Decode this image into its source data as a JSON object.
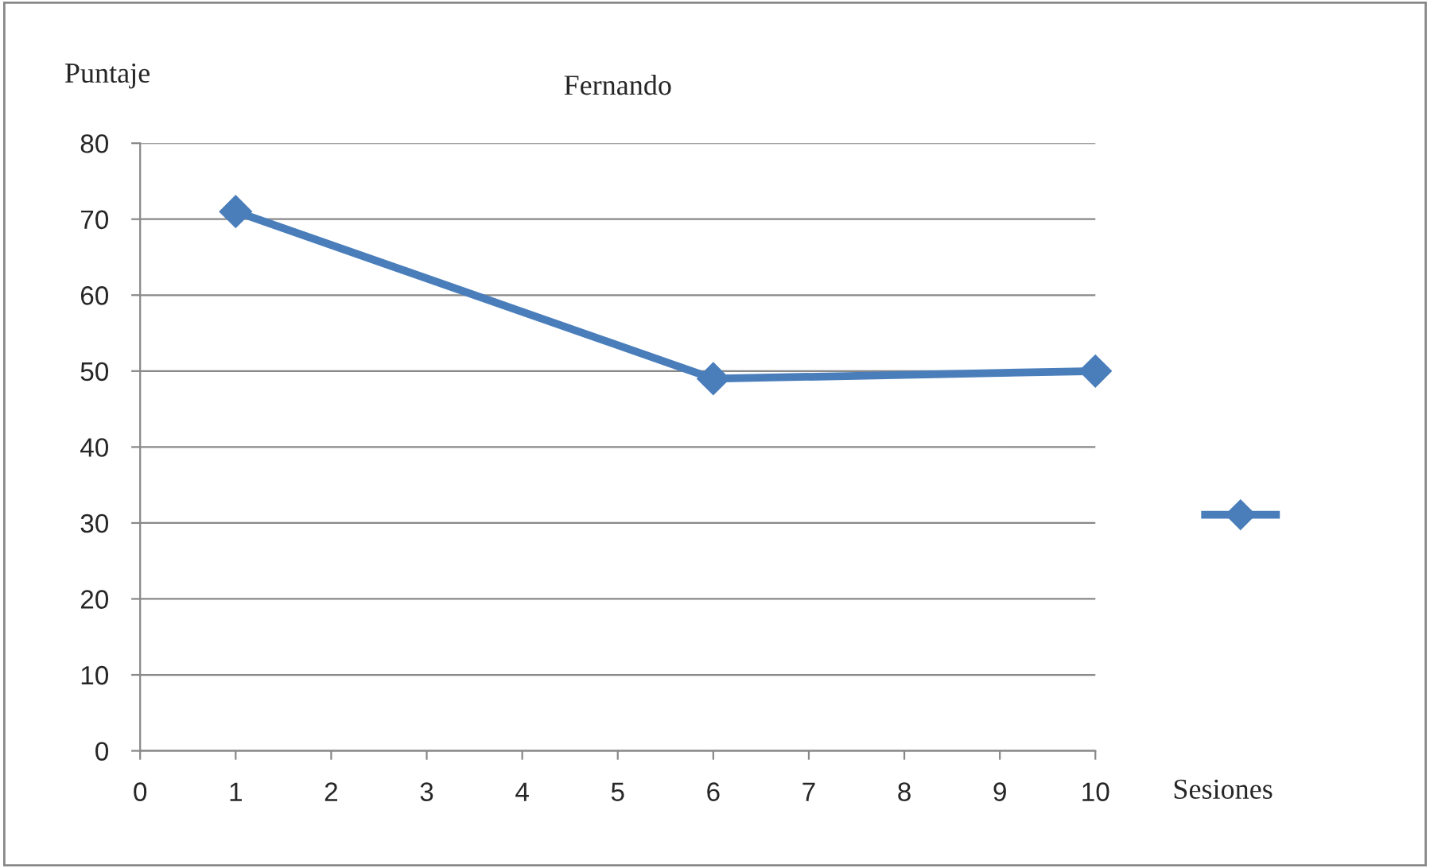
{
  "chart_data": {
    "type": "line",
    "title": "Fernando",
    "ylabel": "Puntaje",
    "xlabel": "Sesiones",
    "x": [
      1,
      6,
      10
    ],
    "series": [
      {
        "color": "#4a7ebb",
        "values": [
          71,
          49,
          50
        ]
      }
    ],
    "xlim": [
      0,
      10
    ],
    "xticks": [
      0,
      1,
      2,
      3,
      4,
      5,
      6,
      7,
      8,
      9,
      10
    ],
    "ylim": [
      0,
      80
    ],
    "yticks": [
      0,
      10,
      20,
      30,
      40,
      50,
      60,
      70,
      80
    ],
    "grid": "y",
    "marker": "diamond",
    "line_style": "solid"
  }
}
